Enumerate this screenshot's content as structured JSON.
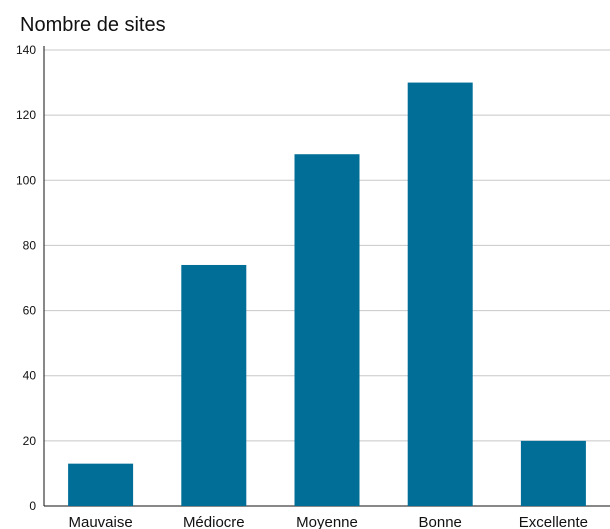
{
  "chart_data": {
    "type": "bar",
    "title": "Nombre de sites",
    "categories": [
      "Mauvaise",
      "Médiocre",
      "Moyenne",
      "Bonne",
      "Excellente"
    ],
    "values": [
      13,
      74,
      108,
      130,
      20
    ],
    "ylim": [
      0,
      140
    ],
    "yticks": [
      0,
      20,
      40,
      60,
      80,
      100,
      120,
      140
    ],
    "xlabel": "",
    "ylabel": "",
    "grid": true,
    "colors": {
      "bar": "#006e96",
      "grid": "#c8c8c8",
      "axis": "#111111"
    }
  }
}
